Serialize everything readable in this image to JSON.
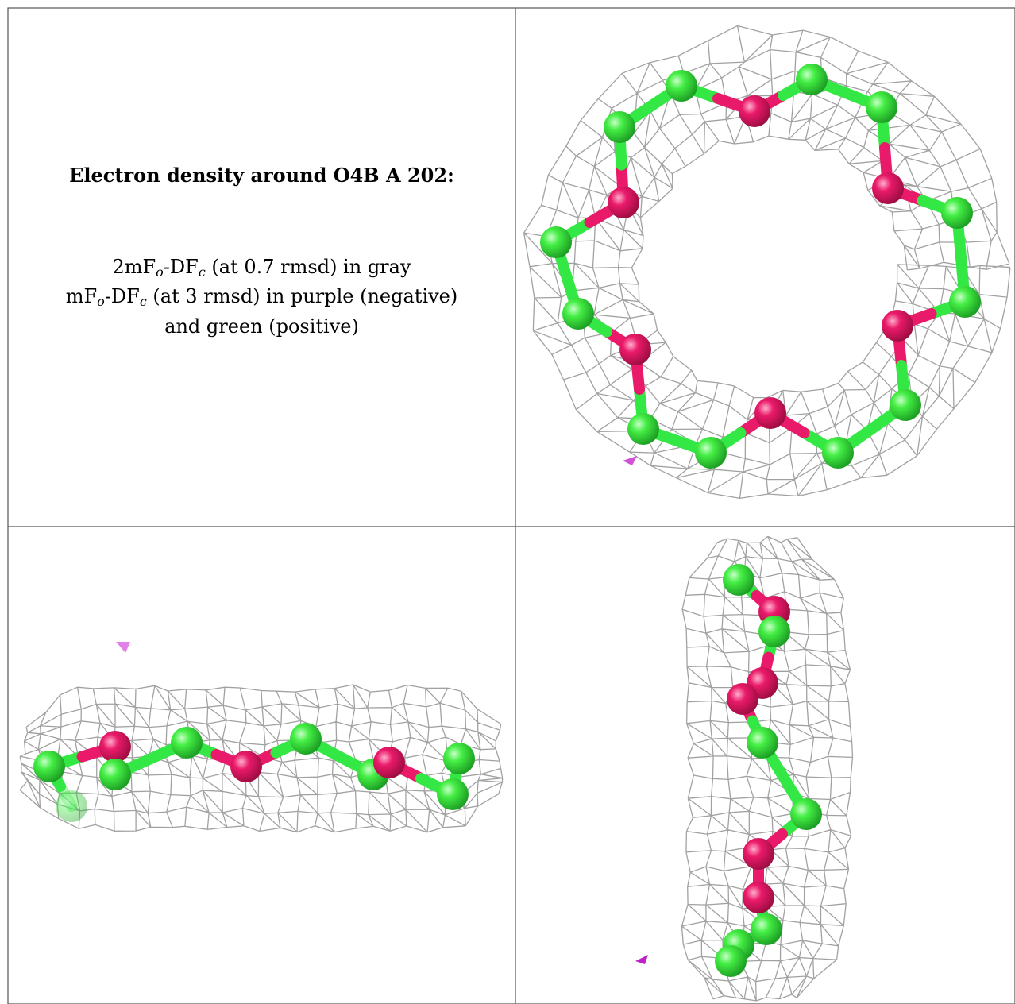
{
  "title": "Electron density around O4B A 202:",
  "lines": [
    [
      {
        "t": "2mF"
      },
      {
        "sub": "o"
      },
      {
        "t": "-DF"
      },
      {
        "sub": "c"
      },
      {
        "t": " (at 0.7 rmsd) in gray"
      }
    ],
    [
      {
        "t": "mF"
      },
      {
        "sub": "o"
      },
      {
        "t": "-DF"
      },
      {
        "sub": "c"
      },
      {
        "t": " (at 3 rmsd) in purple (negative)"
      }
    ],
    [
      {
        "t": "and green (positive)"
      }
    ]
  ]
}
